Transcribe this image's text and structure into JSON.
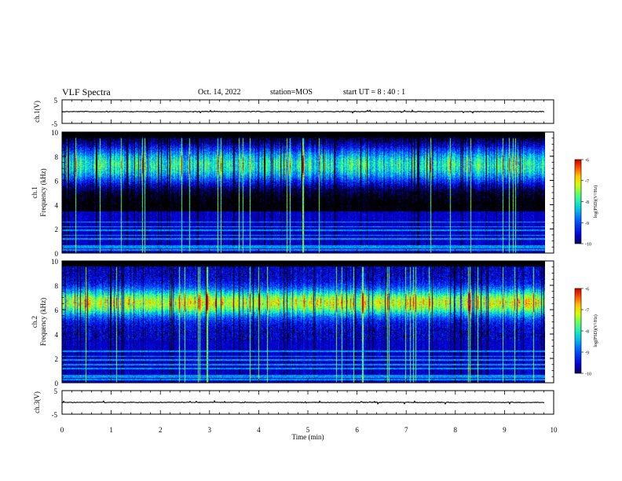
{
  "header": {
    "title": "VLF Spectra",
    "date": "Oct. 14, 2022",
    "station": "station=MOS",
    "start_ut": "start  UT =   8 : 40 : 1"
  },
  "chart_data": [
    {
      "type": "line",
      "ylabel": "ch.1(V)",
      "ylim": [
        -5,
        5
      ],
      "yticks": [
        "5",
        "-5"
      ],
      "series_level": 0
    },
    {
      "type": "heatmap",
      "ylabel_lines": [
        "ch.1",
        "Frequency (kHz)"
      ],
      "ylim": [
        0,
        10
      ],
      "yticks": [
        0,
        2,
        4,
        6,
        8,
        10
      ],
      "xlim": [
        0,
        10
      ],
      "band_center_khz": 7.3,
      "band_width_khz": 1.6,
      "band_base_level": -8.6,
      "colorbar": {
        "label": "log(PSD)(V²/Hz)",
        "range": [
          -10,
          -6
        ],
        "ticks": [
          "-6",
          "-7",
          "-8",
          "-9",
          "-10"
        ]
      }
    },
    {
      "type": "heatmap",
      "ylabel_lines": [
        "ch.2",
        "Frequency (kHz)"
      ],
      "ylim": [
        0,
        10
      ],
      "yticks": [
        0,
        2,
        4,
        6,
        8,
        10
      ],
      "xlim": [
        0,
        10
      ],
      "band_center_khz": 6.6,
      "band_width_khz": 1.1,
      "band_base_level": -7.8,
      "colorbar": {
        "label": "log(PSD)(V²/Hz)",
        "range": [
          -10,
          -6
        ],
        "ticks": [
          "-6",
          "-7",
          "-8",
          "-9",
          "-10"
        ]
      }
    },
    {
      "type": "line",
      "ylabel": "ch.3(V)",
      "ylim": [
        -5,
        5
      ],
      "yticks": [
        "5",
        "-5"
      ],
      "series_level": 0
    }
  ],
  "xaxis": {
    "label": "Time (min)",
    "range": [
      0,
      10
    ],
    "ticks": [
      0,
      1,
      2,
      3,
      4,
      5,
      6,
      7,
      8,
      9,
      10
    ],
    "data_end": 9.82
  }
}
